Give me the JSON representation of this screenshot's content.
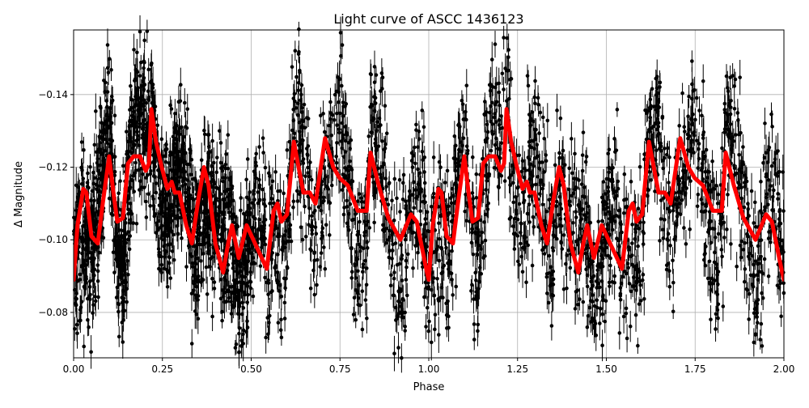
{
  "chart_data": {
    "type": "scatter",
    "title": "Light curve of ASCC 1436123",
    "xlabel": "Phase",
    "ylabel": "Δ Magnitude",
    "xlim": [
      0,
      2
    ],
    "ylim": [
      -0.0675,
      -0.1578
    ],
    "y_inverted": true,
    "grid": true,
    "x_ticks": [
      "0.00",
      "0.25",
      "0.50",
      "0.75",
      "1.00",
      "1.25",
      "1.50",
      "1.75",
      "2.00"
    ],
    "x_tick_values": [
      0,
      0.25,
      0.5,
      0.75,
      1.0,
      1.25,
      1.5,
      1.75,
      2.0
    ],
    "y_ticks": [
      "−0.14",
      "−0.12",
      "−0.10",
      "−0.08"
    ],
    "y_tick_values": [
      -0.14,
      -0.12,
      -0.1,
      -0.08
    ],
    "colors": {
      "points": "#000000",
      "model": "#ff0000",
      "grid": "#b0b0b0"
    },
    "observations": {
      "marker": "circle with vertical error bar",
      "color": "#000000",
      "phase_range": [
        0,
        2
      ],
      "magnitude_range": [
        -0.158,
        -0.068
      ]
    },
    "model_curve": {
      "color": "#ff0000",
      "x": [
        0.0,
        0.011,
        0.027,
        0.036,
        0.05,
        0.068,
        0.082,
        0.1,
        0.112,
        0.123,
        0.139,
        0.153,
        0.169,
        0.187,
        0.203,
        0.212,
        0.219,
        0.232,
        0.248,
        0.264,
        0.276,
        0.285,
        0.298,
        0.317,
        0.333,
        0.351,
        0.367,
        0.38,
        0.399,
        0.421,
        0.435,
        0.446,
        0.465,
        0.487,
        0.544,
        0.563,
        0.574,
        0.585,
        0.601,
        0.62,
        0.647,
        0.665,
        0.681,
        0.708,
        0.731,
        0.749,
        0.772,
        0.8,
        0.825,
        0.836,
        0.859,
        0.886,
        0.92,
        0.95,
        0.966,
        0.995,
        1.0,
        1.011,
        1.027,
        1.036,
        1.05,
        1.068,
        1.082,
        1.1,
        1.112,
        1.123,
        1.139,
        1.153,
        1.169,
        1.187,
        1.203,
        1.212,
        1.219,
        1.232,
        1.248,
        1.264,
        1.276,
        1.285,
        1.298,
        1.317,
        1.333,
        1.351,
        1.367,
        1.38,
        1.399,
        1.421,
        1.435,
        1.446,
        1.465,
        1.487,
        1.544,
        1.563,
        1.574,
        1.585,
        1.601,
        1.62,
        1.647,
        1.665,
        1.681,
        1.708,
        1.731,
        1.749,
        1.772,
        1.8,
        1.825,
        1.836,
        1.859,
        1.886,
        1.92,
        1.95,
        1.966,
        1.995,
        2.0
      ],
      "y": [
        -0.089,
        -0.104,
        -0.114,
        -0.113,
        -0.101,
        -0.099,
        -0.11,
        -0.123,
        -0.113,
        -0.105,
        -0.106,
        -0.121,
        -0.123,
        -0.123,
        -0.119,
        -0.121,
        -0.136,
        -0.127,
        -0.12,
        -0.114,
        -0.116,
        -0.113,
        -0.113,
        -0.104,
        -0.099,
        -0.111,
        -0.12,
        -0.115,
        -0.099,
        -0.091,
        -0.099,
        -0.104,
        -0.095,
        -0.104,
        -0.092,
        -0.108,
        -0.11,
        -0.105,
        -0.107,
        -0.127,
        -0.113,
        -0.113,
        -0.11,
        -0.128,
        -0.12,
        -0.117,
        -0.115,
        -0.108,
        -0.108,
        -0.124,
        -0.115,
        -0.106,
        -0.1,
        -0.107,
        -0.105,
        -0.091,
        -0.089,
        -0.104,
        -0.114,
        -0.113,
        -0.101,
        -0.099,
        -0.11,
        -0.123,
        -0.113,
        -0.105,
        -0.106,
        -0.121,
        -0.123,
        -0.123,
        -0.119,
        -0.121,
        -0.136,
        -0.127,
        -0.12,
        -0.114,
        -0.116,
        -0.113,
        -0.113,
        -0.104,
        -0.099,
        -0.111,
        -0.12,
        -0.115,
        -0.099,
        -0.091,
        -0.099,
        -0.104,
        -0.095,
        -0.104,
        -0.092,
        -0.108,
        -0.11,
        -0.105,
        -0.107,
        -0.127,
        -0.113,
        -0.113,
        -0.11,
        -0.128,
        -0.12,
        -0.117,
        -0.115,
        -0.108,
        -0.108,
        -0.124,
        -0.115,
        -0.106,
        -0.1,
        -0.107,
        -0.105,
        -0.091,
        -0.089
      ]
    }
  }
}
